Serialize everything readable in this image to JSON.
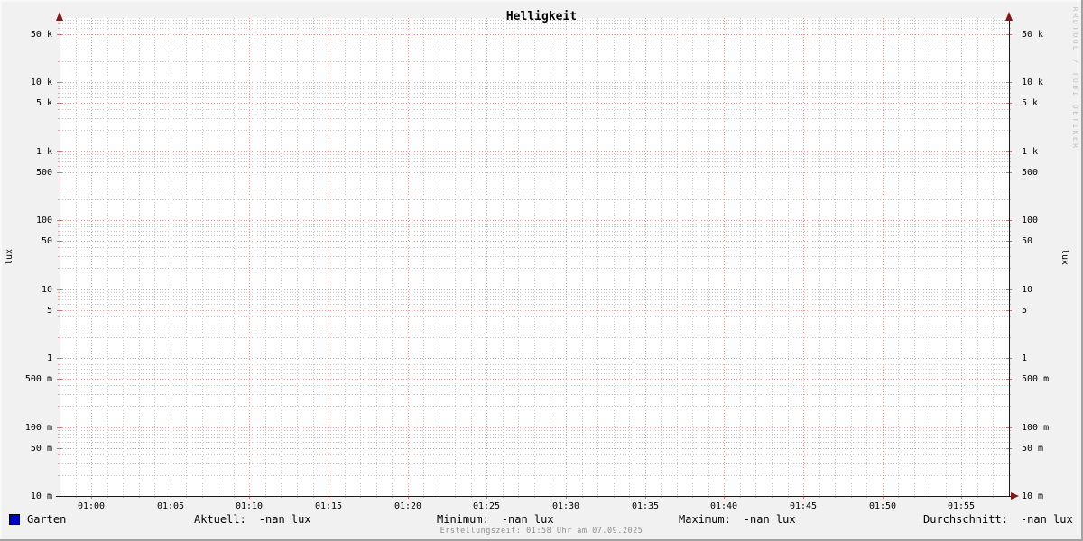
{
  "title": "Helligkeit",
  "watermark": "RRDTOOL / TOBI OETIKER",
  "chart_data": {
    "type": "line",
    "title": "Helligkeit",
    "ylabel_left": "lux",
    "ylabel_right": "lux",
    "y_scale": "logarithmic",
    "y_range": [
      0.01,
      85000
    ],
    "y_ticks": [
      {
        "value": 50000,
        "label": "50 k"
      },
      {
        "value": 10000,
        "label": "10 k"
      },
      {
        "value": 5000,
        "label": "5 k"
      },
      {
        "value": 1000,
        "label": "1 k"
      },
      {
        "value": 500,
        "label": "500"
      },
      {
        "value": 100,
        "label": "100"
      },
      {
        "value": 50,
        "label": "50"
      },
      {
        "value": 10,
        "label": "10"
      },
      {
        "value": 5,
        "label": "5"
      },
      {
        "value": 1,
        "label": "1"
      },
      {
        "value": 0.5,
        "label": "500 m"
      },
      {
        "value": 0.1,
        "label": "100 m"
      },
      {
        "value": 0.05,
        "label": "50 m"
      },
      {
        "value": 0.01,
        "label": "10 m"
      }
    ],
    "x_range": [
      "00:58",
      "01:58"
    ],
    "x_ticks": [
      "01:00",
      "01:05",
      "01:10",
      "01:15",
      "01:20",
      "01:25",
      "01:30",
      "01:35",
      "01:40",
      "01:45",
      "01:50",
      "01:55"
    ],
    "x_minor_step_minutes": 1,
    "grid": true,
    "legend_position": "bottom",
    "series": [
      {
        "name": "Garten",
        "color": "#0000cc",
        "values": []
      }
    ]
  },
  "legend": {
    "series": [
      {
        "label": "Garten",
        "color": "#0000cc"
      }
    ],
    "stats": [
      {
        "label": "Aktuell:",
        "value": "-nan lux"
      },
      {
        "label": "Minimum:",
        "value": "-nan lux"
      },
      {
        "label": "Maximum:",
        "value": "-nan lux"
      },
      {
        "label": "Durchschnitt:",
        "value": "-nan lux"
      }
    ]
  },
  "footer": {
    "created_text": "Erstellungszeit: 01:58 Uhr am 07.09.2025"
  },
  "colors": {
    "background": "#f1f1f1",
    "canvas": "#ffffff",
    "major_grid": "#ea9696",
    "minor_grid": "#c6c6c6",
    "axis": "#1a1a1a",
    "arrow": "#7a1a1a",
    "major_tick": "#d87070",
    "minor_tick": "#eaa8a8",
    "series_blue": "#0000cc",
    "footer_gray": "#8e8e8e",
    "watermark_gray": "#c0c0c0"
  }
}
